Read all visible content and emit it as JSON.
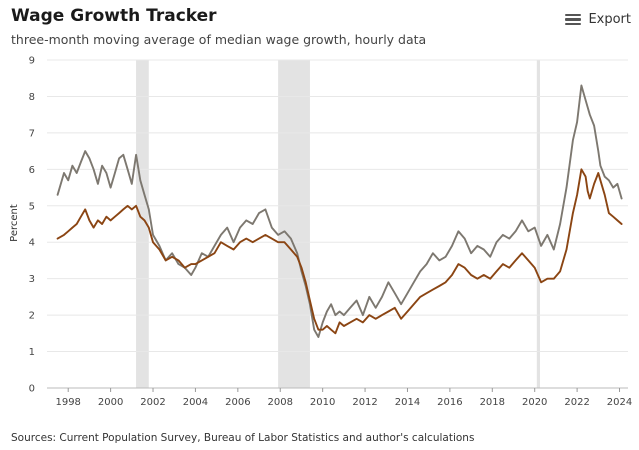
{
  "header": {
    "title": "Wage Growth Tracker",
    "subtitle": "three-month moving average of median wage growth, hourly data",
    "export_label": "Export"
  },
  "footer": {
    "sources": "Sources: Current Population Survey, Bureau of Labor Statistics and author's calculations"
  },
  "colors": {
    "series_gray": "#7d7870",
    "series_brown": "#8b4513",
    "recession": "#e3e3e3",
    "grid": "#e8e8e8"
  },
  "chart_data": {
    "type": "line",
    "title": "Wage Growth Tracker",
    "subtitle": "three-month moving average of median wage growth, hourly data",
    "xlabel": "",
    "ylabel": "Percent",
    "xlim": [
      1997.0,
      2024.4
    ],
    "ylim": [
      0,
      9
    ],
    "x_ticks": [
      1998,
      2000,
      2002,
      2004,
      2006,
      2008,
      2010,
      2012,
      2014,
      2016,
      2018,
      2020,
      2022,
      2024
    ],
    "x_tick_labels": [
      "1998",
      "2000",
      "2002",
      "2004",
      "2006",
      "2008",
      "2010",
      "2012",
      "2014",
      "2016",
      "2018",
      "2020",
      "2022",
      "2024"
    ],
    "y_ticks": [
      0,
      1,
      2,
      3,
      4,
      5,
      6,
      7,
      8,
      9
    ],
    "y_tick_labels": [
      "0",
      "1",
      "2",
      "3",
      "4",
      "5",
      "6",
      "7",
      "8",
      "9"
    ],
    "grid": true,
    "legend": "none",
    "recessions": [
      {
        "start": 2001.2,
        "end": 2001.8
      },
      {
        "start": 2007.9,
        "end": 2009.4
      },
      {
        "start": 2020.1,
        "end": 2020.25
      }
    ],
    "series": [
      {
        "name": "gray",
        "x": [
          1997.5,
          1997.8,
          1998.0,
          1998.2,
          1998.4,
          1998.6,
          1998.8,
          1999.0,
          1999.2,
          1999.4,
          1999.6,
          1999.8,
          2000.0,
          2000.2,
          2000.4,
          2000.6,
          2000.8,
          2001.0,
          2001.2,
          2001.4,
          2001.6,
          2001.8,
          2002.0,
          2002.3,
          2002.6,
          2002.9,
          2003.2,
          2003.5,
          2003.8,
          2004.0,
          2004.3,
          2004.6,
          2004.9,
          2005.2,
          2005.5,
          2005.8,
          2006.1,
          2006.4,
          2006.7,
          2007.0,
          2007.3,
          2007.6,
          2007.9,
          2008.2,
          2008.5,
          2008.8,
          2009.0,
          2009.2,
          2009.4,
          2009.6,
          2009.8,
          2010.0,
          2010.2,
          2010.4,
          2010.6,
          2010.8,
          2011.0,
          2011.3,
          2011.6,
          2011.9,
          2012.2,
          2012.5,
          2012.8,
          2013.1,
          2013.4,
          2013.7,
          2014.0,
          2014.3,
          2014.6,
          2014.9,
          2015.2,
          2015.5,
          2015.8,
          2016.1,
          2016.4,
          2016.7,
          2017.0,
          2017.3,
          2017.6,
          2017.9,
          2018.2,
          2018.5,
          2018.8,
          2019.1,
          2019.4,
          2019.7,
          2020.0,
          2020.3,
          2020.6,
          2020.9,
          2021.2,
          2021.5,
          2021.8,
          2022.0,
          2022.2,
          2022.4,
          2022.5,
          2022.6,
          2022.8,
          2023.0,
          2023.1,
          2023.3,
          2023.5,
          2023.7,
          2023.9,
          2024.1
        ],
        "values": [
          5.3,
          5.9,
          5.7,
          6.1,
          5.9,
          6.2,
          6.5,
          6.3,
          6.0,
          5.6,
          6.1,
          5.9,
          5.5,
          5.9,
          6.3,
          6.4,
          6.0,
          5.6,
          6.4,
          5.7,
          5.3,
          4.9,
          4.2,
          3.9,
          3.5,
          3.7,
          3.4,
          3.3,
          3.1,
          3.3,
          3.7,
          3.6,
          3.9,
          4.2,
          4.4,
          4.0,
          4.4,
          4.6,
          4.5,
          4.8,
          4.9,
          4.4,
          4.2,
          4.3,
          4.1,
          3.7,
          3.2,
          2.8,
          2.3,
          1.6,
          1.4,
          1.8,
          2.1,
          2.3,
          2.0,
          2.1,
          2.0,
          2.2,
          2.4,
          2.0,
          2.5,
          2.2,
          2.5,
          2.9,
          2.6,
          2.3,
          2.6,
          2.9,
          3.2,
          3.4,
          3.7,
          3.5,
          3.6,
          3.9,
          4.3,
          4.1,
          3.7,
          3.9,
          3.8,
          3.6,
          4.0,
          4.2,
          4.1,
          4.3,
          4.6,
          4.3,
          4.4,
          3.9,
          4.2,
          3.8,
          4.5,
          5.5,
          6.8,
          7.3,
          8.3,
          7.9,
          7.7,
          7.5,
          7.2,
          6.5,
          6.1,
          5.8,
          5.7,
          5.5,
          5.6,
          5.2
        ]
      },
      {
        "name": "brown",
        "x": [
          1997.5,
          1997.8,
          1998.0,
          1998.2,
          1998.4,
          1998.6,
          1998.8,
          1999.0,
          1999.2,
          1999.4,
          1999.6,
          1999.8,
          2000.0,
          2000.2,
          2000.4,
          2000.6,
          2000.8,
          2001.0,
          2001.2,
          2001.4,
          2001.6,
          2001.8,
          2002.0,
          2002.3,
          2002.6,
          2002.9,
          2003.2,
          2003.5,
          2003.8,
          2004.0,
          2004.3,
          2004.6,
          2004.9,
          2005.2,
          2005.5,
          2005.8,
          2006.1,
          2006.4,
          2006.7,
          2007.0,
          2007.3,
          2007.6,
          2007.9,
          2008.2,
          2008.5,
          2008.8,
          2009.0,
          2009.2,
          2009.4,
          2009.6,
          2009.8,
          2010.0,
          2010.2,
          2010.4,
          2010.6,
          2010.8,
          2011.0,
          2011.3,
          2011.6,
          2011.9,
          2012.2,
          2012.5,
          2012.8,
          2013.1,
          2013.4,
          2013.7,
          2014.0,
          2014.3,
          2014.6,
          2014.9,
          2015.2,
          2015.5,
          2015.8,
          2016.1,
          2016.4,
          2016.7,
          2017.0,
          2017.3,
          2017.6,
          2017.9,
          2018.2,
          2018.5,
          2018.8,
          2019.1,
          2019.4,
          2019.7,
          2020.0,
          2020.3,
          2020.6,
          2020.9,
          2021.2,
          2021.5,
          2021.8,
          2022.0,
          2022.2,
          2022.4,
          2022.5,
          2022.6,
          2022.8,
          2023.0,
          2023.1,
          2023.3,
          2023.5,
          2023.7,
          2023.9,
          2024.1
        ],
        "values": [
          4.1,
          4.2,
          4.3,
          4.4,
          4.5,
          4.7,
          4.9,
          4.6,
          4.4,
          4.6,
          4.5,
          4.7,
          4.6,
          4.7,
          4.8,
          4.9,
          5.0,
          4.9,
          5.0,
          4.7,
          4.6,
          4.4,
          4.0,
          3.8,
          3.5,
          3.6,
          3.5,
          3.3,
          3.4,
          3.4,
          3.5,
          3.6,
          3.7,
          4.0,
          3.9,
          3.8,
          4.0,
          4.1,
          4.0,
          4.1,
          4.2,
          4.1,
          4.0,
          4.0,
          3.8,
          3.6,
          3.3,
          2.9,
          2.4,
          1.9,
          1.6,
          1.6,
          1.7,
          1.6,
          1.5,
          1.8,
          1.7,
          1.8,
          1.9,
          1.8,
          2.0,
          1.9,
          2.0,
          2.1,
          2.2,
          1.9,
          2.1,
          2.3,
          2.5,
          2.6,
          2.7,
          2.8,
          2.9,
          3.1,
          3.4,
          3.3,
          3.1,
          3.0,
          3.1,
          3.0,
          3.2,
          3.4,
          3.3,
          3.5,
          3.7,
          3.5,
          3.3,
          2.9,
          3.0,
          3.0,
          3.2,
          3.8,
          4.8,
          5.3,
          6.0,
          5.8,
          5.4,
          5.2,
          5.6,
          5.9,
          5.7,
          5.3,
          4.8,
          4.7,
          4.6,
          4.5
        ]
      }
    ]
  }
}
